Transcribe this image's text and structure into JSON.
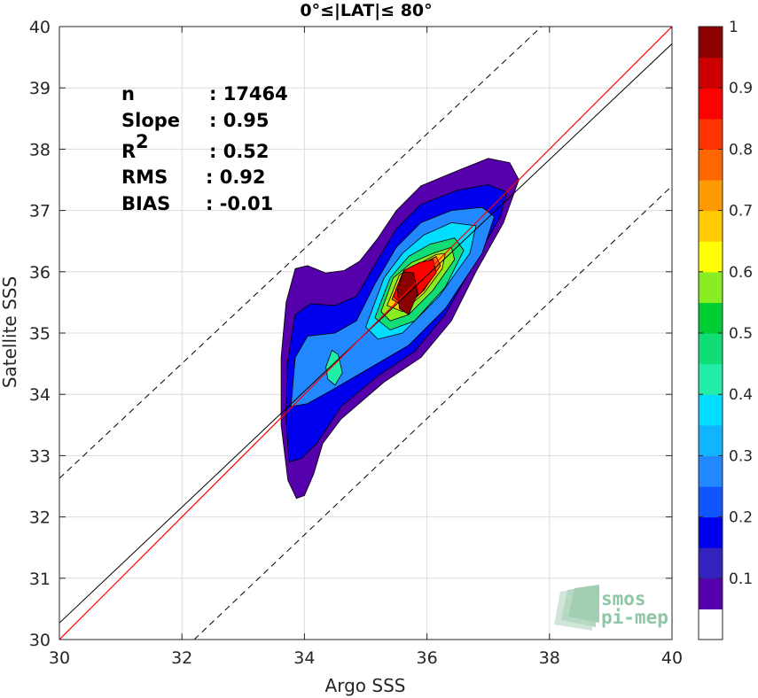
{
  "chart_data": {
    "type": "contour-density",
    "title": "0°≤|LAT|≤ 80°",
    "xlabel": "Argo SSS",
    "ylabel": "Satellite SSS",
    "xlim": [
      30,
      40
    ],
    "ylim": [
      30,
      40
    ],
    "xticks": [
      30,
      32,
      34,
      36,
      38,
      40
    ],
    "yticks": [
      30,
      31,
      32,
      33,
      34,
      35,
      36,
      37,
      38,
      39,
      40
    ],
    "grid": true,
    "stats": [
      {
        "label": "n",
        "value": ": 17464"
      },
      {
        "label": "Slope",
        "value": ": 0.95"
      },
      {
        "label": "R",
        "sup": "2",
        "value": ": 0.52"
      },
      {
        "label": "RMS",
        "value": ": 0.92"
      },
      {
        "label": "BIAS",
        "value": ": -0.01"
      }
    ],
    "lines": {
      "one_to_one": {
        "color": "#ff0000",
        "points": [
          [
            30,
            30
          ],
          [
            40,
            40
          ]
        ]
      },
      "fit": {
        "color": "#000000",
        "points": [
          [
            30,
            30.27
          ],
          [
            40,
            39.72
          ]
        ]
      },
      "envelope_upper": {
        "style": "dashed",
        "points": [
          [
            30,
            32.63
          ],
          [
            37.87,
            40
          ]
        ]
      },
      "envelope_lower": {
        "style": "dashed",
        "points": [
          [
            32.2,
            30
          ],
          [
            40,
            37.4
          ]
        ]
      }
    },
    "contour_levels": [
      0.05,
      0.1,
      0.15,
      0.2,
      0.25,
      0.3,
      0.35,
      0.4,
      0.45,
      0.5,
      0.55,
      0.6,
      0.65,
      0.7,
      0.75,
      0.8,
      0.85,
      0.9,
      0.95
    ],
    "contours": [
      {
        "level": 0.05,
        "points": [
          [
            33.87,
            32.3
          ],
          [
            33.73,
            32.6
          ],
          [
            33.62,
            33.5
          ],
          [
            33.62,
            34.6
          ],
          [
            33.7,
            35.5
          ],
          [
            33.85,
            36.05
          ],
          [
            34.05,
            36.1
          ],
          [
            34.35,
            35.98
          ],
          [
            34.65,
            36.02
          ],
          [
            34.9,
            36.17
          ],
          [
            35.2,
            36.55
          ],
          [
            35.5,
            37.0
          ],
          [
            35.9,
            37.4
          ],
          [
            36.5,
            37.65
          ],
          [
            37.0,
            37.85
          ],
          [
            37.35,
            37.78
          ],
          [
            37.5,
            37.5
          ],
          [
            37.25,
            36.8
          ],
          [
            36.8,
            36.0
          ],
          [
            36.4,
            35.2
          ],
          [
            35.9,
            34.6
          ],
          [
            35.3,
            34.2
          ],
          [
            34.6,
            33.6
          ],
          [
            34.3,
            33.2
          ],
          [
            34.15,
            32.7
          ],
          [
            34.0,
            32.35
          ]
        ]
      },
      {
        "level": 0.15,
        "points": [
          [
            33.75,
            32.9
          ],
          [
            33.7,
            33.6
          ],
          [
            33.72,
            34.5
          ],
          [
            33.85,
            35.3
          ],
          [
            34.1,
            35.48
          ],
          [
            34.5,
            35.45
          ],
          [
            34.85,
            35.6
          ],
          [
            35.2,
            36.2
          ],
          [
            35.5,
            36.7
          ],
          [
            35.9,
            37.1
          ],
          [
            36.5,
            37.33
          ],
          [
            37.0,
            37.42
          ],
          [
            37.3,
            37.3
          ],
          [
            37.2,
            36.9
          ],
          [
            36.8,
            36.2
          ],
          [
            36.3,
            35.3
          ],
          [
            35.8,
            34.7
          ],
          [
            35.2,
            34.3
          ],
          [
            34.6,
            33.8
          ],
          [
            34.2,
            33.2
          ],
          [
            33.95,
            32.95
          ]
        ]
      },
      {
        "level": 0.25,
        "points": [
          [
            33.78,
            33.8
          ],
          [
            33.85,
            34.6
          ],
          [
            34.05,
            34.95
          ],
          [
            34.5,
            35.0
          ],
          [
            34.85,
            35.2
          ],
          [
            35.15,
            35.8
          ],
          [
            35.5,
            36.4
          ],
          [
            35.9,
            36.8
          ],
          [
            36.4,
            37.0
          ],
          [
            36.9,
            37.05
          ],
          [
            37.1,
            36.9
          ],
          [
            36.9,
            36.3
          ],
          [
            36.3,
            35.4
          ],
          [
            35.7,
            34.8
          ],
          [
            35.1,
            34.45
          ],
          [
            34.5,
            34.1
          ],
          [
            34.05,
            33.85
          ]
        ]
      },
      {
        "level": 0.35,
        "points": [
          [
            35.0,
            35.1
          ],
          [
            35.3,
            35.9
          ],
          [
            35.6,
            36.3
          ],
          [
            35.95,
            36.6
          ],
          [
            36.4,
            36.8
          ],
          [
            36.8,
            36.75
          ],
          [
            36.7,
            36.3
          ],
          [
            36.2,
            35.6
          ],
          [
            35.6,
            35.0
          ],
          [
            35.2,
            34.9
          ]
        ]
      },
      {
        "level": 0.4,
        "points": [
          [
            34.35,
            34.45
          ],
          [
            34.45,
            34.72
          ],
          [
            34.55,
            34.65
          ],
          [
            34.62,
            34.35
          ],
          [
            34.5,
            34.15
          ],
          [
            34.38,
            34.25
          ]
        ]
      },
      {
        "level": 0.45,
        "points": [
          [
            35.15,
            35.25
          ],
          [
            35.4,
            35.9
          ],
          [
            35.7,
            36.25
          ],
          [
            36.05,
            36.45
          ],
          [
            36.45,
            36.55
          ],
          [
            36.6,
            36.35
          ],
          [
            36.3,
            35.75
          ],
          [
            35.8,
            35.2
          ],
          [
            35.4,
            35.05
          ]
        ]
      },
      {
        "level": 0.55,
        "points": [
          [
            35.25,
            35.35
          ],
          [
            35.45,
            35.9
          ],
          [
            35.75,
            36.15
          ],
          [
            36.1,
            36.3
          ],
          [
            36.4,
            36.4
          ],
          [
            36.45,
            36.2
          ],
          [
            36.1,
            35.7
          ],
          [
            35.7,
            35.3
          ],
          [
            35.4,
            35.2
          ]
        ]
      },
      {
        "level": 0.65,
        "points": [
          [
            35.35,
            35.45
          ],
          [
            35.55,
            35.95
          ],
          [
            35.85,
            36.12
          ],
          [
            36.15,
            36.28
          ],
          [
            36.3,
            36.3
          ],
          [
            36.25,
            36.05
          ],
          [
            35.95,
            35.65
          ],
          [
            35.6,
            35.35
          ]
        ]
      },
      {
        "level": 0.75,
        "points": [
          [
            35.43,
            35.55
          ],
          [
            35.6,
            35.98
          ],
          [
            35.9,
            36.12
          ],
          [
            36.15,
            36.25
          ],
          [
            36.22,
            36.1
          ],
          [
            35.95,
            35.7
          ],
          [
            35.65,
            35.42
          ]
        ]
      },
      {
        "level": 0.85,
        "points": [
          [
            35.45,
            35.6
          ],
          [
            35.62,
            36.02
          ],
          [
            35.88,
            36.15
          ],
          [
            36.1,
            36.2
          ],
          [
            36.15,
            35.98
          ],
          [
            35.9,
            35.65
          ],
          [
            35.6,
            35.45
          ]
        ]
      },
      {
        "level": 0.95,
        "points": [
          [
            35.55,
            35.4
          ],
          [
            35.52,
            35.7
          ],
          [
            35.62,
            36.0
          ],
          [
            35.78,
            35.98
          ],
          [
            35.85,
            35.65
          ],
          [
            35.7,
            35.3
          ]
        ]
      }
    ],
    "colorbar": {
      "ticks": [
        "0.1",
        "0.2",
        "0.3",
        "0.4",
        "0.5",
        "0.6",
        "0.7",
        "0.8",
        "0.9",
        "1"
      ],
      "colors": [
        "#ffffff",
        "#5500aa",
        "#3322bb",
        "#0000ee",
        "#1155ff",
        "#2288ff",
        "#11b4ff",
        "#00ddff",
        "#22eeaa",
        "#11dd77",
        "#00cc33",
        "#88ee22",
        "#ffff00",
        "#ffcc00",
        "#ff9900",
        "#ff6600",
        "#ff3300",
        "#ff0000",
        "#cc0000",
        "#8b0000"
      ]
    },
    "logo": {
      "line1": "smos",
      "line2": "pi-mep"
    }
  }
}
